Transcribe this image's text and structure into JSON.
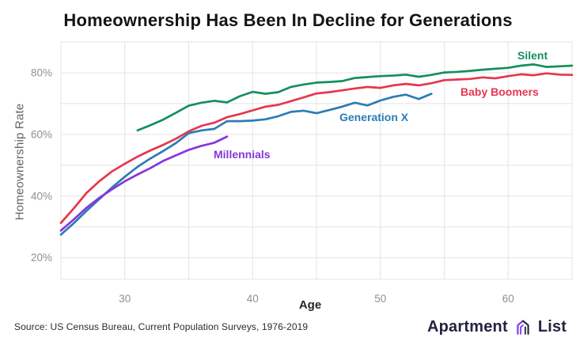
{
  "chart_data": {
    "type": "line",
    "title": "Homeownership Has Been In Decline for Generations",
    "xlabel": "Age",
    "ylabel": "Homeownership Rate",
    "xlim": [
      25,
      65
    ],
    "ylim": [
      13,
      90
    ],
    "x_gridline_step": 5,
    "y_gridlines": [
      20,
      30,
      40,
      50,
      60,
      70,
      80
    ],
    "xticks": [
      30,
      40,
      50,
      60
    ],
    "yticks": [
      20,
      40,
      60,
      80
    ],
    "ytick_suffix": "%",
    "grid": true,
    "legend_position": "inline-labels-near-lines",
    "series": [
      {
        "name": "Silent",
        "color": "#14905c",
        "start_age": 31,
        "values": [
          61.3,
          63.0,
          64.8,
          67.0,
          69.3,
          70.3,
          70.9,
          70.4,
          72.4,
          73.8,
          73.2,
          73.7,
          75.4,
          76.2,
          76.8,
          77.0,
          77.3,
          78.3,
          78.6,
          78.9,
          79.1,
          79.4,
          78.7,
          79.3,
          80.1,
          80.3,
          80.6,
          81.0,
          81.3,
          81.6,
          82.3,
          82.7,
          81.9,
          82.1,
          82.3
        ]
      },
      {
        "name": "Baby Boomers",
        "color": "#e5374e",
        "start_age": 25,
        "values": [
          31.3,
          36.0,
          41.0,
          44.8,
          48.0,
          50.5,
          52.8,
          54.8,
          56.6,
          58.6,
          61.0,
          62.8,
          63.8,
          65.6,
          66.6,
          67.8,
          69.0,
          69.6,
          70.8,
          72.0,
          73.3,
          73.7,
          74.3,
          74.9,
          75.4,
          75.1,
          75.9,
          76.4,
          75.9,
          76.6,
          77.6,
          77.8,
          78.0,
          78.5,
          78.2,
          78.9,
          79.5,
          79.2,
          79.8,
          79.4,
          79.3
        ]
      },
      {
        "name": "Generation X",
        "color": "#2b7cb4",
        "start_age": 25,
        "values": [
          27.5,
          31.2,
          35.2,
          39.0,
          42.8,
          46.3,
          49.5,
          52.2,
          54.6,
          57.2,
          60.4,
          61.3,
          61.8,
          64.3,
          64.3,
          64.5,
          64.9,
          65.9,
          67.3,
          67.7,
          66.9,
          67.9,
          69.0,
          70.3,
          69.4,
          71.0,
          72.2,
          72.9,
          71.5,
          73.2
        ]
      },
      {
        "name": "Millennials",
        "color": "#8636dd",
        "start_age": 25,
        "values": [
          28.8,
          32.4,
          36.2,
          39.4,
          42.2,
          44.8,
          47.0,
          49.1,
          51.4,
          53.2,
          55.0,
          56.3,
          57.3,
          59.3
        ]
      }
    ]
  },
  "colors": {
    "grid": "#e4e4e6",
    "tick_text": "#8d9093",
    "title_text": "#141414",
    "logo_navy": "#262240",
    "logo_purple": "#7c3aed"
  },
  "footer": {
    "source": "Source: US Census Bureau, Current Population Surveys, 1976-2019",
    "logo": {
      "left": "Apartment",
      "right": "List"
    }
  }
}
